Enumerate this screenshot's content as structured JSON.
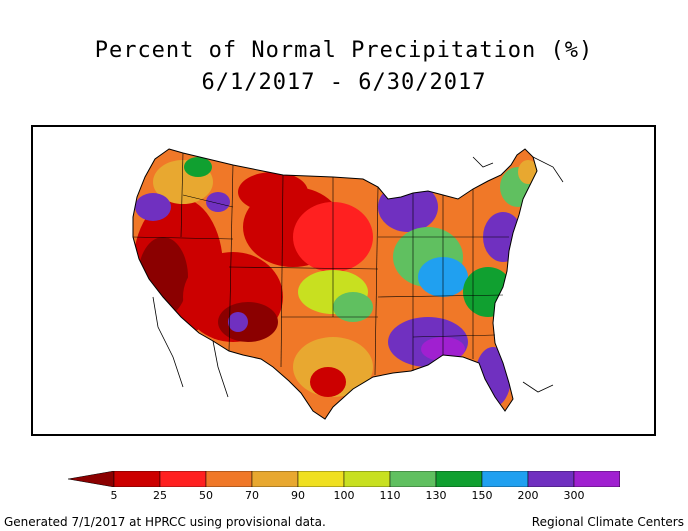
{
  "title": "Percent of Normal Precipitation (%)",
  "subtitle": "6/1/2017 - 6/30/2017",
  "legend": {
    "ticks": [
      "5",
      "25",
      "50",
      "70",
      "90",
      "100",
      "110",
      "130",
      "150",
      "200",
      "300"
    ],
    "colors": [
      "#8b0000",
      "#cc0000",
      "#ff2020",
      "#f07828",
      "#e8a830",
      "#f0e020",
      "#c8e020",
      "#60c060",
      "#10a030",
      "#20a0f0",
      "#7030c0",
      "#a020d0",
      "#ff40ff"
    ]
  },
  "footer": {
    "left": "Generated 7/1/2017 at HPRCC using provisional data.",
    "right": "Regional Climate Centers"
  }
}
